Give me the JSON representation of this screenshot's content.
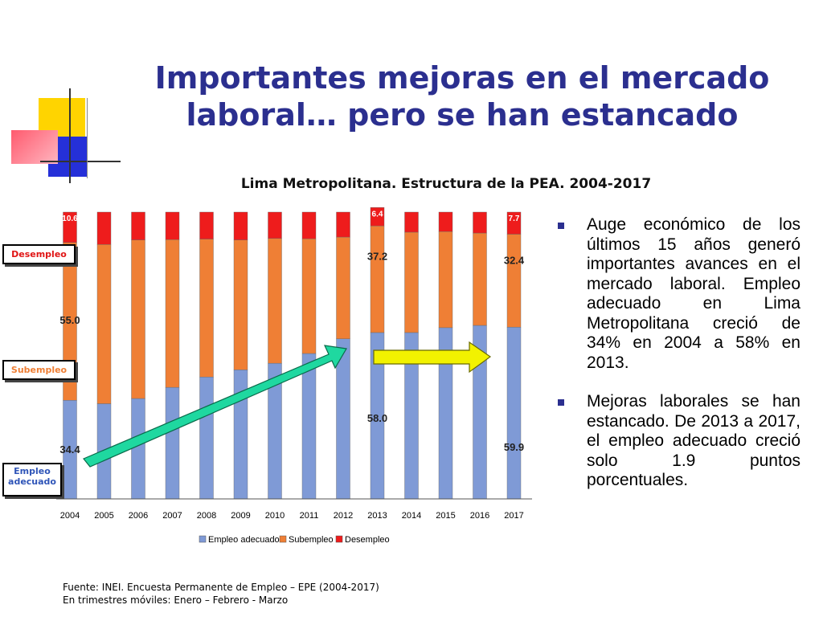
{
  "slide": {
    "title": "Importantes mejoras en el mercado laboral… pero se han estancado"
  },
  "side_labels": {
    "desempleo": "Desempleo",
    "subempleo": "Subempleo",
    "empleo_adecuado": "Empleo adecuado"
  },
  "bullets": [
    "Auge económico de los últimos 15 años generó importantes avances en el mercado laboral. Empleo adecuado en Lima Metropolitana creció de 34% en 2004 a 58% en 2013.",
    "Mejoras laborales se han estancado. De 2013 a 2017, el empleo adecuado creció solo 1.9 puntos porcentuales."
  ],
  "source": {
    "line1": "Fuente: INEI. Encuesta Permanente de Empleo – EPE (2004-2017)",
    "line2": "En trimestres móviles: Enero – Febrero - Marzo"
  },
  "colors": {
    "title": "#2b2f8f",
    "empleo_adecuado": "#7f9ad6",
    "subempleo": "#ef7f35",
    "desempleo": "#ee1c1c",
    "arrow_up": "#1fd8a0",
    "arrow_flat": "#f2f200"
  },
  "chart_data": {
    "type": "bar",
    "stacked": true,
    "title": "Lima Metropolitana. Estructura de la PEA. 2004-2017",
    "categories": [
      "2004",
      "2005",
      "2006",
      "2007",
      "2008",
      "2009",
      "2010",
      "2011",
      "2012",
      "2013",
      "2014",
      "2015",
      "2016",
      "2017"
    ],
    "series": [
      {
        "name": "Empleo adecuado",
        "values": [
          34.4,
          33.2,
          35.0,
          38.9,
          42.5,
          45.0,
          47.3,
          50.7,
          55.8,
          58.0,
          58.0,
          59.7,
          60.5,
          59.9
        ]
      },
      {
        "name": "Subempleo",
        "values": [
          55.0,
          55.5,
          55.3,
          51.5,
          48.1,
          45.3,
          43.5,
          40.0,
          35.5,
          37.2,
          35.0,
          33.5,
          32.2,
          32.4
        ]
      },
      {
        "name": "Desempleo",
        "values": [
          10.6,
          11.3,
          9.7,
          9.6,
          9.4,
          9.7,
          9.2,
          9.3,
          8.7,
          6.4,
          7.0,
          6.8,
          7.3,
          7.7
        ]
      }
    ],
    "data_labels": [
      {
        "category": "2004",
        "series": "Empleo adecuado",
        "text": "34.4"
      },
      {
        "category": "2004",
        "series": "Subempleo",
        "text": "55.0"
      },
      {
        "category": "2004",
        "series": "Desempleo",
        "text": "10.6"
      },
      {
        "category": "2013",
        "series": "Empleo adecuado",
        "text": "58.0"
      },
      {
        "category": "2013",
        "series": "Subempleo",
        "text": "37.2"
      },
      {
        "category": "2013",
        "series": "Desempleo",
        "text": "6.4"
      },
      {
        "category": "2017",
        "series": "Empleo adecuado",
        "text": "59.9"
      },
      {
        "category": "2017",
        "series": "Subempleo",
        "text": "32.4"
      },
      {
        "category": "2017",
        "series": "Desempleo",
        "text": "7.7"
      }
    ],
    "ylim": [
      0,
      100
    ],
    "grid": false,
    "legend": "bottom"
  }
}
